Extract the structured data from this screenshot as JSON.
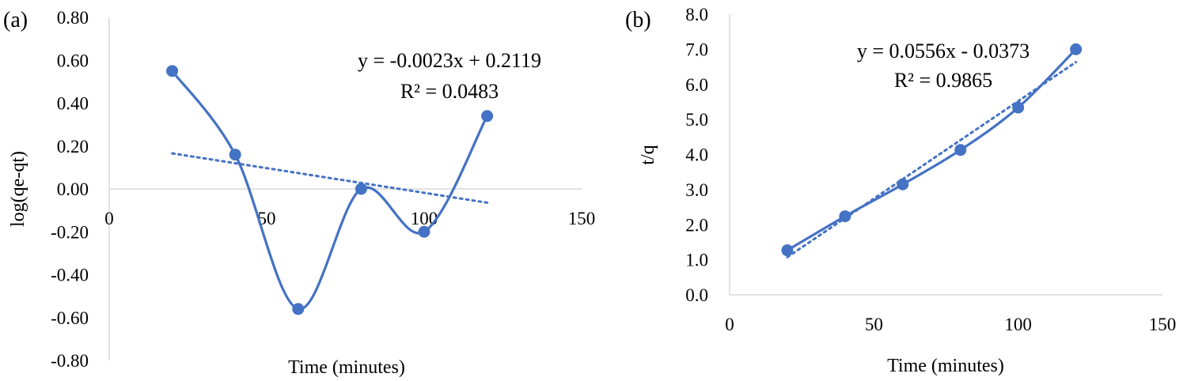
{
  "chart_data": [
    {
      "type": "scatter",
      "panel_label": "(a)",
      "xlabel": "Time (minutes)",
      "ylabel": "log(qe-qt)",
      "xlim": [
        0,
        150
      ],
      "ylim": [
        -0.8,
        0.8
      ],
      "x_ticks": [
        "0",
        "50",
        "100",
        "150"
      ],
      "y_ticks": [
        "-0.80",
        "-0.60",
        "-0.40",
        "-0.20",
        "0.00",
        "0.20",
        "0.40",
        "0.60",
        "0.80"
      ],
      "grid": false,
      "series": [
        {
          "x": [
            20,
            40,
            60,
            80,
            100,
            120
          ],
          "y": [
            0.55,
            0.16,
            -0.56,
            0.0,
            -0.2,
            0.34
          ],
          "line": "smooth",
          "marker": "circle"
        }
      ],
      "trendline": {
        "slope": -0.0023,
        "intercept": 0.2119,
        "x_range": [
          20,
          120
        ],
        "style": "dotted",
        "equation": "y = -0.0023x + 0.2119",
        "r_squared": "R² = 0.0483"
      },
      "colors": {
        "series": "#4472c4"
      }
    },
    {
      "type": "scatter",
      "panel_label": "(b)",
      "xlabel": "Time (minutes)",
      "ylabel": "t/q",
      "xlim": [
        0,
        150
      ],
      "ylim": [
        0,
        8
      ],
      "x_ticks": [
        "0",
        "50",
        "100",
        "150"
      ],
      "y_ticks": [
        "0.0",
        "1.0",
        "2.0",
        "3.0",
        "4.0",
        "5.0",
        "6.0",
        "7.0",
        "8.0"
      ],
      "grid": false,
      "series": [
        {
          "x": [
            20,
            40,
            60,
            80,
            100,
            120
          ],
          "y": [
            1.27,
            2.24,
            3.15,
            4.13,
            5.34,
            7.0
          ],
          "line": "smooth",
          "marker": "circle"
        }
      ],
      "trendline": {
        "slope": 0.0556,
        "intercept": -0.0373,
        "x_range": [
          20,
          120
        ],
        "style": "dotted",
        "equation": "y = 0.0556x - 0.0373",
        "r_squared": "R² = 0.9865"
      },
      "colors": {
        "series": "#4472c4"
      }
    }
  ]
}
